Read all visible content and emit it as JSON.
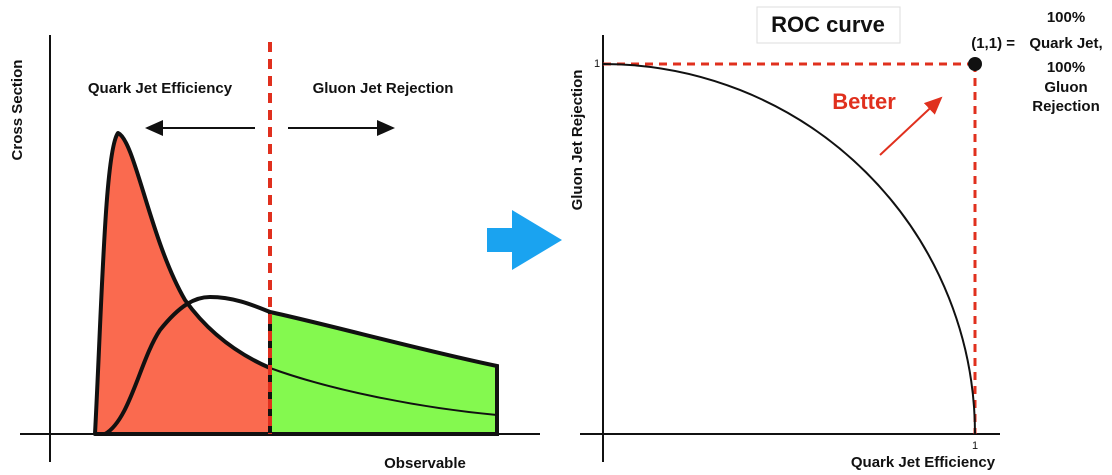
{
  "left_panel": {
    "y_axis_label": "Cross Section",
    "x_axis_label": "Observable",
    "left_region_label": "Quark Jet Efficiency",
    "right_region_label": "Gluon Jet Rejection"
  },
  "right_panel": {
    "title": "ROC curve",
    "y_axis_label": "Gluon Jet Rejection",
    "x_axis_label": "Quark Jet Efficiency",
    "y_tick": "1",
    "x_tick": "1",
    "arrow_label": "Better",
    "point_label": "(1,1) =",
    "point_note": [
      "100%",
      "Quark Jet,",
      "100%",
      "Gluon",
      "Rejection"
    ]
  }
}
